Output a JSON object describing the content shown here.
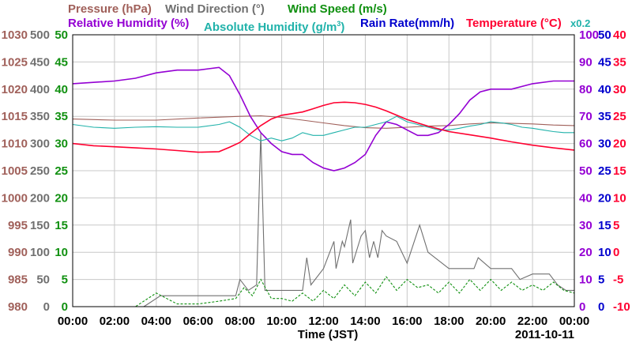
{
  "legend": {
    "pressure": "Pressure (hPa)",
    "wind_direction": "Wind Direction (°)",
    "wind_speed": "Wind Speed (m/s)",
    "relative_humidity": "Relative Humidity (%)",
    "absolute_humidity_pre": "Absolute Humidity (g/m",
    "absolute_humidity_sup": "3",
    "absolute_humidity_post": ")",
    "rain_rate": "Rain Rate(mm/h)",
    "temperature": "Temperature (°C)",
    "rain_scale_note": "x0.2"
  },
  "colors": {
    "pressure": "#a0605a",
    "wind_direction": "#707070",
    "wind_speed": "#109010",
    "relative_humidity": "#9400d3",
    "absolute_humidity": "#20b2aa",
    "rain_rate": "#0000cd",
    "temperature": "#ff0030"
  },
  "chart_data": {
    "type": "line",
    "xlabel": "Time (JST)",
    "date_label": "2011-10-11",
    "x_ticks": [
      "00:00",
      "02:00",
      "04:00",
      "06:00",
      "08:00",
      "10:00",
      "12:00",
      "14:00",
      "16:00",
      "18:00",
      "20:00",
      "22:00",
      "00:00"
    ],
    "axes": {
      "pressure": {
        "min": 980,
        "max": 1030,
        "ticks": [
          1030,
          1025,
          1020,
          1015,
          1010,
          1005,
          1000,
          995,
          990,
          985,
          980
        ]
      },
      "wind_direction": {
        "min": 0,
        "max": 500,
        "ticks": [
          500,
          450,
          400,
          350,
          300,
          250,
          200,
          150,
          100,
          50,
          0
        ]
      },
      "wind_speed": {
        "min": 0,
        "max": 50,
        "ticks": [
          50,
          45,
          40,
          35,
          30,
          25,
          20,
          15,
          10,
          5,
          0
        ]
      },
      "humidity_pct": {
        "min": 0,
        "max": 100,
        "ticks": [
          100,
          90,
          80,
          70,
          60,
          50,
          40,
          30,
          20,
          10,
          0
        ]
      },
      "rain_and_abs_humidity": {
        "min": 0,
        "max": 50,
        "ticks": [
          50,
          45,
          40,
          35,
          30,
          25,
          20,
          15,
          10,
          5,
          0
        ]
      },
      "temperature": {
        "min": -10,
        "max": 40,
        "ticks": [
          40,
          35,
          30,
          25,
          20,
          15,
          10,
          5,
          0,
          -5,
          -10
        ]
      }
    },
    "grid": true,
    "series": [
      {
        "name": "Pressure (hPa)",
        "axis": "pressure",
        "x": [
          0,
          2,
          4,
          6,
          8,
          9,
          10,
          11,
          12,
          13,
          14,
          15,
          16,
          17,
          18,
          19,
          20,
          21,
          22,
          23,
          24
        ],
        "y": [
          1014.5,
          1014.3,
          1014.3,
          1014.7,
          1015.0,
          1015.1,
          1014.8,
          1014.3,
          1013.8,
          1013.3,
          1012.9,
          1012.8,
          1013.0,
          1013.2,
          1013.3,
          1013.6,
          1013.8,
          1013.7,
          1013.6,
          1013.4,
          1013.3
        ]
      },
      {
        "name": "Wind Direction (°)",
        "axis": "wind_direction",
        "x": [
          0,
          3.4,
          3.6,
          4.2,
          4.5,
          6.5,
          7.8,
          8.0,
          8.4,
          8.8,
          9.0,
          9.2,
          9.6,
          10,
          11,
          11.2,
          11.4,
          12,
          12.5,
          12.6,
          12.9,
          13.0,
          13.3,
          13.4,
          13.8,
          14.0,
          14.2,
          14.4,
          14.6,
          14.8,
          15.0,
          15.5,
          16.0,
          16.6,
          17.0,
          18.0,
          18.4,
          19.2,
          19.4,
          20.0,
          20.6,
          21.0,
          21.4,
          22.0,
          22.8,
          23.2,
          23.6,
          24
        ],
        "y": [
          0,
          0,
          5,
          20,
          20,
          20,
          20,
          50,
          30,
          40,
          320,
          30,
          30,
          30,
          30,
          90,
          40,
          70,
          120,
          70,
          120,
          110,
          160,
          80,
          130,
          140,
          90,
          120,
          90,
          140,
          130,
          120,
          80,
          150,
          100,
          70,
          70,
          70,
          90,
          70,
          70,
          70,
          50,
          60,
          60,
          40,
          30,
          30
        ]
      },
      {
        "name": "Wind Speed (m/s)",
        "axis": "wind_speed",
        "x": [
          0,
          2,
          3,
          4,
          5,
          6,
          7,
          7.8,
          8.2,
          8.6,
          9,
          9.5,
          10,
          10.5,
          11,
          11.5,
          12,
          12.5,
          13,
          13.5,
          14,
          14.5,
          15,
          15.5,
          16,
          16.5,
          17,
          17.5,
          18,
          18.5,
          19,
          19.5,
          20,
          20.5,
          21,
          21.5,
          22,
          22.5,
          23,
          23.5,
          24
        ],
        "y": [
          0,
          0,
          0,
          2.5,
          0.5,
          0.5,
          1.0,
          1.5,
          3.5,
          2.0,
          5.0,
          1.5,
          1.5,
          1.0,
          2.5,
          1.0,
          3.0,
          1.5,
          4.0,
          2.0,
          4.5,
          2.5,
          5.5,
          3.0,
          5.0,
          3.5,
          4.0,
          2.5,
          4.5,
          2.5,
          5.0,
          3.0,
          5.0,
          3.0,
          4.5,
          3.0,
          4.0,
          3.0,
          4.5,
          3.0,
          2.5
        ]
      },
      {
        "name": "Relative Humidity (%)",
        "axis": "humidity_pct",
        "x": [
          0,
          1,
          2,
          3,
          4,
          5,
          6,
          6.5,
          7,
          7.5,
          8,
          8.5,
          9,
          9.5,
          10,
          10.5,
          11,
          11.5,
          12,
          12.5,
          13,
          13.5,
          14,
          14.5,
          15,
          15.5,
          16,
          16.5,
          17,
          17.5,
          18,
          18.5,
          19,
          19.5,
          20,
          21,
          22,
          23,
          24
        ],
        "y": [
          82,
          82.5,
          83,
          84,
          86,
          87,
          87,
          87.5,
          88,
          85,
          78,
          70,
          64,
          60,
          57,
          56,
          56,
          53,
          51,
          50,
          51,
          53,
          56,
          63,
          68,
          67,
          65,
          63,
          63,
          64,
          67,
          71,
          76,
          79,
          80,
          80,
          82,
          83,
          83
        ]
      },
      {
        "name": "Absolute Humidity (g/m3)",
        "axis": "rain_and_abs_humidity",
        "x": [
          0,
          1,
          2,
          3,
          4,
          5,
          6,
          7,
          7.5,
          8,
          8.5,
          9,
          9.5,
          10,
          10.5,
          11,
          11.5,
          12,
          12.5,
          13,
          13.5,
          14,
          14.5,
          15,
          15.5,
          16,
          16.5,
          17,
          17.5,
          18,
          18.5,
          19,
          19.5,
          20,
          20.5,
          21,
          21.5,
          22,
          22.5,
          23,
          23.5,
          24
        ],
        "y": [
          33.5,
          33,
          32.8,
          33,
          33.1,
          33,
          33,
          33.5,
          34,
          33,
          31.5,
          30.5,
          31,
          30.5,
          31,
          32,
          31.5,
          31.5,
          32,
          32.5,
          33,
          33,
          33.5,
          34,
          35,
          34,
          33.5,
          33,
          32.5,
          32.5,
          32.8,
          33.2,
          33.5,
          34,
          33.8,
          33.5,
          33,
          32.8,
          32.5,
          32.2,
          32,
          32
        ]
      },
      {
        "name": "Temperature (°C)",
        "axis": "temperature",
        "x": [
          0,
          1,
          2,
          3,
          4,
          5,
          6,
          7,
          7.5,
          8,
          8.5,
          9,
          9.5,
          10,
          10.5,
          11,
          11.5,
          12,
          12.5,
          13,
          13.5,
          14,
          14.5,
          15,
          15.5,
          16,
          16.5,
          17,
          17.5,
          18,
          19,
          20,
          21,
          22,
          23,
          24
        ],
        "y": [
          20,
          19.6,
          19.4,
          19.2,
          19,
          18.7,
          18.4,
          18.5,
          19.3,
          20.2,
          21.8,
          23.3,
          24.5,
          25.2,
          25.5,
          25.8,
          26.4,
          27,
          27.5,
          27.6,
          27.5,
          27.2,
          26.7,
          26,
          25.2,
          24.4,
          23.8,
          23.2,
          22.7,
          22.2,
          21.6,
          21,
          20.3,
          19.7,
          19.2,
          18.8
        ]
      }
    ]
  }
}
